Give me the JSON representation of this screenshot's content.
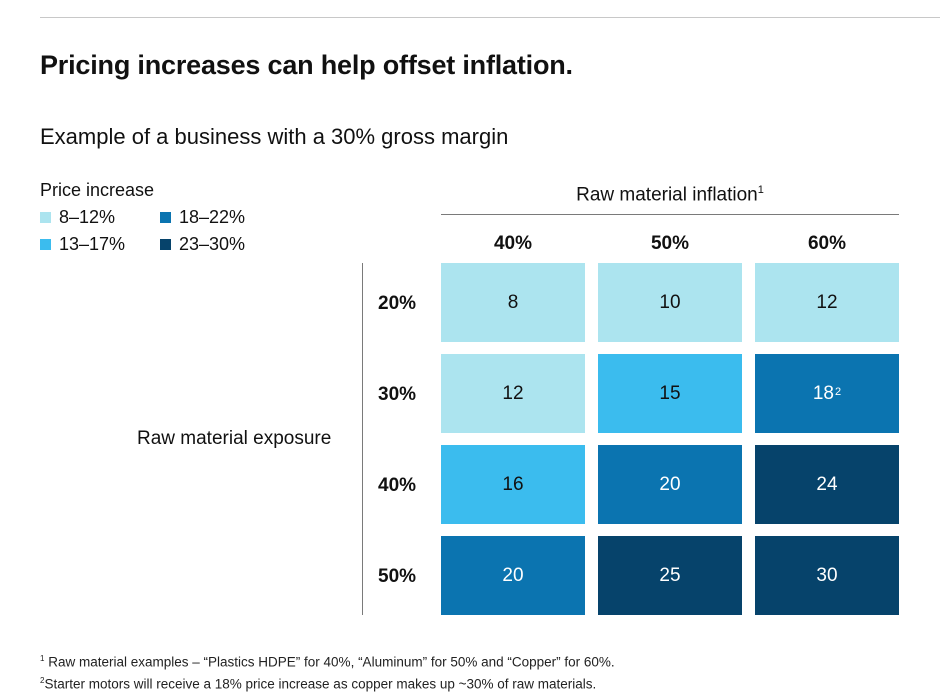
{
  "chart_data": {
    "type": "heatmap",
    "title": "Pricing increases can help offset inflation.",
    "subtitle": "Example of a business with a 30% gross margin",
    "legend": {
      "title": "Price increase",
      "placement": "top-left",
      "items": [
        {
          "label": "8–12%",
          "color": "#ace4ef"
        },
        {
          "label": "18–22%",
          "color": "#0b74b0"
        },
        {
          "label": "13–17%",
          "color": "#3bbcee"
        },
        {
          "label": "23–30%",
          "color": "#06436b"
        }
      ]
    },
    "x_axis": {
      "label": "Raw material inflation",
      "footnote": "1",
      "categories": [
        "40%",
        "50%",
        "60%"
      ]
    },
    "y_axis": {
      "label": "Raw material exposure",
      "categories": [
        "20%",
        "30%",
        "40%",
        "50%"
      ]
    },
    "values": [
      [
        8,
        10,
        12
      ],
      [
        12,
        15,
        18
      ],
      [
        16,
        20,
        24
      ],
      [
        20,
        25,
        30
      ]
    ],
    "cell_footnotes": [
      {
        "row": 1,
        "col": 2,
        "mark": "2"
      }
    ]
  },
  "footnotes": [
    {
      "mark": "1",
      "text": "Raw material examples – “Plastics HDPE” for 40%, “Aluminum” for 50% and “Copper” for 60%."
    },
    {
      "mark": "2",
      "text": "Starter motors will receive a 18% price increase as copper makes up ~30% of raw materials."
    }
  ]
}
